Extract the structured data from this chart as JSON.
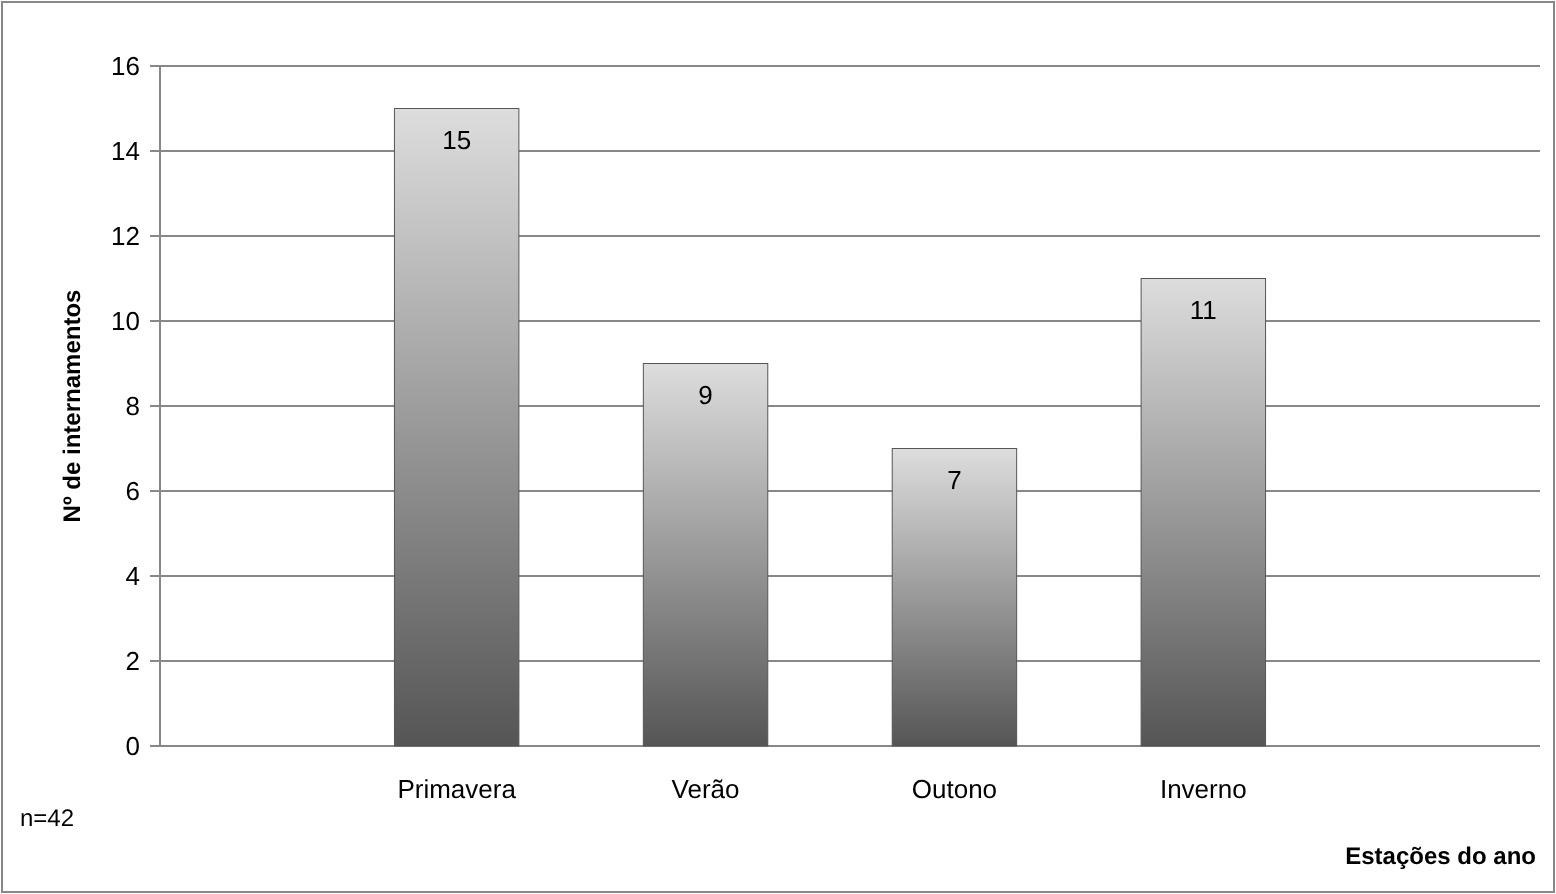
{
  "chart_data": {
    "type": "bar",
    "xlabel": "Estações do ano",
    "ylabel": "Nº de internamentos",
    "categories": [
      "Primavera",
      "Verão",
      "Outono",
      "Inverno"
    ],
    "values": [
      15,
      9,
      7,
      11
    ],
    "color": "#555555",
    "ylim": [
      0,
      16
    ],
    "yticks": [
      0,
      2,
      4,
      6,
      8,
      10,
      12,
      14,
      16
    ],
    "grid": "y",
    "data_labels": true,
    "annotations": [
      "n=42"
    ]
  }
}
